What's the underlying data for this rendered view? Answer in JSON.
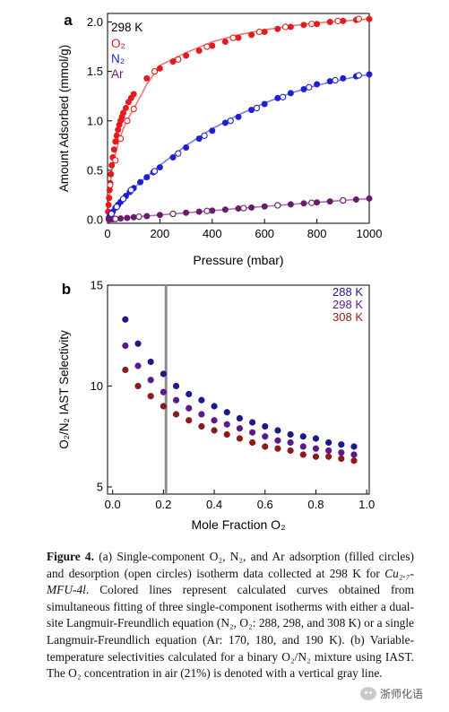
{
  "chart_data": [
    {
      "panel": "a",
      "type": "scatter",
      "xlabel": "Pressure (mbar)",
      "ylabel": "Amount Adsorbed (mmol/g)",
      "xlim": [
        0,
        1000
      ],
      "ylim": [
        0,
        2.0
      ],
      "xticks": [
        0,
        200,
        400,
        600,
        800,
        1000
      ],
      "yticks": [
        0.0,
        0.5,
        1.0,
        1.5,
        2.0
      ],
      "yticklabels": [
        "0.0",
        "0.5",
        "1.0",
        "1.5",
        "2.0"
      ],
      "legend_title": "298 K",
      "legend_position": "top-left",
      "grid": false,
      "series": [
        {
          "name": "O₂",
          "color": "#e41a1c",
          "fit_x": [
            0,
            5,
            10,
            20,
            30,
            40,
            50,
            60,
            80,
            100,
            150,
            200,
            300,
            400,
            500,
            600,
            700,
            800,
            900,
            1000
          ],
          "fit_y": [
            0,
            0.2,
            0.36,
            0.55,
            0.67,
            0.76,
            0.84,
            0.92,
            1.03,
            1.12,
            1.37,
            1.56,
            1.69,
            1.8,
            1.87,
            1.92,
            1.96,
            1.99,
            2.01,
            2.03
          ],
          "adsorption": [
            [
              2,
              0.08
            ],
            [
              4,
              0.15
            ],
            [
              6,
              0.22
            ],
            [
              8,
              0.3
            ],
            [
              10,
              0.37
            ],
            [
              13,
              0.46
            ],
            [
              16,
              0.55
            ],
            [
              20,
              0.63
            ],
            [
              25,
              0.71
            ],
            [
              30,
              0.79
            ],
            [
              35,
              0.85
            ],
            [
              40,
              0.91
            ],
            [
              45,
              0.96
            ],
            [
              50,
              1.0
            ],
            [
              55,
              1.04
            ],
            [
              60,
              1.08
            ],
            [
              70,
              1.13
            ],
            [
              80,
              1.19
            ],
            [
              90,
              1.23
            ],
            [
              100,
              1.27
            ],
            [
              150,
              1.43
            ],
            [
              200,
              1.53
            ],
            [
              250,
              1.6
            ],
            [
              300,
              1.66
            ],
            [
              350,
              1.71
            ],
            [
              400,
              1.76
            ],
            [
              450,
              1.8
            ],
            [
              500,
              1.84
            ],
            [
              550,
              1.87
            ],
            [
              600,
              1.9
            ],
            [
              650,
              1.93
            ],
            [
              700,
              1.95
            ],
            [
              750,
              1.97
            ],
            [
              800,
              1.98
            ],
            [
              850,
              2.0
            ],
            [
              900,
              2.01
            ],
            [
              950,
              2.02
            ],
            [
              1000,
              2.03
            ]
          ],
          "desorption": [
            [
              10,
              0.35
            ],
            [
              30,
              0.6
            ],
            [
              50,
              0.82
            ],
            [
              75,
              1.0
            ],
            [
              100,
              1.12
            ],
            [
              180,
              1.5
            ],
            [
              270,
              1.62
            ],
            [
              380,
              1.75
            ],
            [
              480,
              1.84
            ],
            [
              580,
              1.9
            ],
            [
              680,
              1.95
            ],
            [
              780,
              1.98
            ],
            [
              880,
              2.01
            ],
            [
              960,
              2.03
            ]
          ]
        },
        {
          "name": "N₂",
          "color": "#1f1fd6",
          "fit_x": [
            0,
            50,
            100,
            200,
            300,
            400,
            500,
            600,
            700,
            800,
            900,
            1000
          ],
          "fit_y": [
            0,
            0.18,
            0.32,
            0.55,
            0.75,
            0.92,
            1.06,
            1.18,
            1.28,
            1.36,
            1.42,
            1.47
          ],
          "adsorption": [
            [
              5,
              0.02
            ],
            [
              10,
              0.04
            ],
            [
              20,
              0.08
            ],
            [
              30,
              0.12
            ],
            [
              40,
              0.15
            ],
            [
              50,
              0.18
            ],
            [
              60,
              0.21
            ],
            [
              70,
              0.24
            ],
            [
              85,
              0.28
            ],
            [
              100,
              0.32
            ],
            [
              125,
              0.38
            ],
            [
              150,
              0.43
            ],
            [
              175,
              0.48
            ],
            [
              200,
              0.53
            ],
            [
              250,
              0.63
            ],
            [
              300,
              0.73
            ],
            [
              350,
              0.82
            ],
            [
              400,
              0.9
            ],
            [
              450,
              0.98
            ],
            [
              500,
              1.04
            ],
            [
              550,
              1.11
            ],
            [
              600,
              1.17
            ],
            [
              650,
              1.23
            ],
            [
              700,
              1.28
            ],
            [
              750,
              1.32
            ],
            [
              800,
              1.37
            ],
            [
              850,
              1.4
            ],
            [
              900,
              1.43
            ],
            [
              950,
              1.45
            ],
            [
              1000,
              1.47
            ]
          ],
          "desorption": [
            [
              15,
              0.06
            ],
            [
              35,
              0.13
            ],
            [
              60,
              0.21
            ],
            [
              90,
              0.3
            ],
            [
              180,
              0.49
            ],
            [
              270,
              0.67
            ],
            [
              370,
              0.85
            ],
            [
              470,
              1.0
            ],
            [
              570,
              1.13
            ],
            [
              670,
              1.24
            ],
            [
              770,
              1.34
            ],
            [
              870,
              1.41
            ],
            [
              960,
              1.46
            ]
          ]
        },
        {
          "name": "Ar",
          "color": "#6a1b6a",
          "fit_x": [
            0,
            100,
            200,
            300,
            400,
            500,
            600,
            700,
            800,
            900,
            1000
          ],
          "fit_y": [
            0,
            0.025,
            0.048,
            0.07,
            0.092,
            0.113,
            0.134,
            0.155,
            0.175,
            0.195,
            0.214
          ],
          "adsorption": [
            [
              5,
              0.002
            ],
            [
              10,
              0.003
            ],
            [
              20,
              0.006
            ],
            [
              30,
              0.008
            ],
            [
              50,
              0.012
            ],
            [
              75,
              0.018
            ],
            [
              100,
              0.025
            ],
            [
              150,
              0.036
            ],
            [
              200,
              0.048
            ],
            [
              250,
              0.059
            ],
            [
              300,
              0.07
            ],
            [
              350,
              0.081
            ],
            [
              400,
              0.092
            ],
            [
              450,
              0.102
            ],
            [
              500,
              0.113
            ],
            [
              550,
              0.123
            ],
            [
              600,
              0.134
            ],
            [
              650,
              0.145
            ],
            [
              700,
              0.155
            ],
            [
              750,
              0.165
            ],
            [
              800,
              0.175
            ],
            [
              850,
              0.185
            ],
            [
              900,
              0.195
            ],
            [
              950,
              0.204
            ],
            [
              1000,
              0.214
            ]
          ],
          "desorption": [
            [
              30,
              0.008
            ],
            [
              120,
              0.03
            ],
            [
              250,
              0.059
            ],
            [
              380,
              0.088
            ],
            [
              520,
              0.117
            ],
            [
              650,
              0.145
            ],
            [
              780,
              0.171
            ],
            [
              900,
              0.195
            ]
          ]
        }
      ]
    },
    {
      "panel": "b",
      "type": "scatter",
      "xlabel": "Mole Fraction O₂",
      "ylabel": "O₂/N₂ IAST Selectivity",
      "xlim": [
        0,
        1.0
      ],
      "ylim": [
        5,
        15
      ],
      "xticks": [
        0.0,
        0.2,
        0.4,
        0.6,
        0.8,
        1.0
      ],
      "xticklabels": [
        "0.0",
        "0.2",
        "0.4",
        "0.6",
        "0.8",
        "1.0"
      ],
      "yticks": [
        5,
        10,
        15
      ],
      "vline_x": 0.21,
      "vline_color": "#8c8c8c",
      "legend_position": "top-right",
      "grid": false,
      "x": [
        0.05,
        0.1,
        0.15,
        0.2,
        0.25,
        0.3,
        0.35,
        0.4,
        0.45,
        0.5,
        0.55,
        0.6,
        0.65,
        0.7,
        0.75,
        0.8,
        0.85,
        0.9,
        0.95
      ],
      "series": [
        {
          "name": "288 K",
          "color": "#1a1a8c",
          "values": [
            13.3,
            12.1,
            11.2,
            10.6,
            10.0,
            9.6,
            9.3,
            9.0,
            8.7,
            8.4,
            8.2,
            8.0,
            7.8,
            7.6,
            7.5,
            7.4,
            7.2,
            7.1,
            7.0
          ]
        },
        {
          "name": "298 K",
          "color": "#5b1a8c",
          "values": [
            12.0,
            11.0,
            10.3,
            9.7,
            9.3,
            8.9,
            8.6,
            8.3,
            8.1,
            7.9,
            7.7,
            7.5,
            7.3,
            7.2,
            7.0,
            6.9,
            6.8,
            6.7,
            6.6
          ]
        },
        {
          "name": "308 K",
          "color": "#8c1a1a",
          "values": [
            10.8,
            10.0,
            9.5,
            9.0,
            8.6,
            8.3,
            8.0,
            7.8,
            7.6,
            7.4,
            7.2,
            7.0,
            6.9,
            6.8,
            6.6,
            6.5,
            6.5,
            6.4,
            6.3
          ]
        }
      ]
    }
  ],
  "panel_labels": {
    "a": "a",
    "b": "b"
  },
  "caption": {
    "label": "Figure 4.",
    "part1": " (a) Single-component O₂, N₂, and Ar adsorption (filled circles) and desorption (open circles) isotherm data collected at 298 K for ",
    "material": "Cu₂.₇-MFU-4l",
    "part2": ". Colored lines represent calculated curves obtained from simultaneous fitting of three single-component isotherms with either a dual-site Langmuir-Freundlich equation (N₂, O₂: 288, 298, and 308 K) or a single Langmuir-Freundlich equation (Ar: 170, 180, and 190 K). (b) Variable-temperature selectivities calculated for a binary O₂/N₂ mixture using IAST. The O₂ concentration in air (21%) is denoted with a vertical gray line."
  },
  "watermark": {
    "text": "浙师化语",
    "icon": "wechat-icon"
  }
}
